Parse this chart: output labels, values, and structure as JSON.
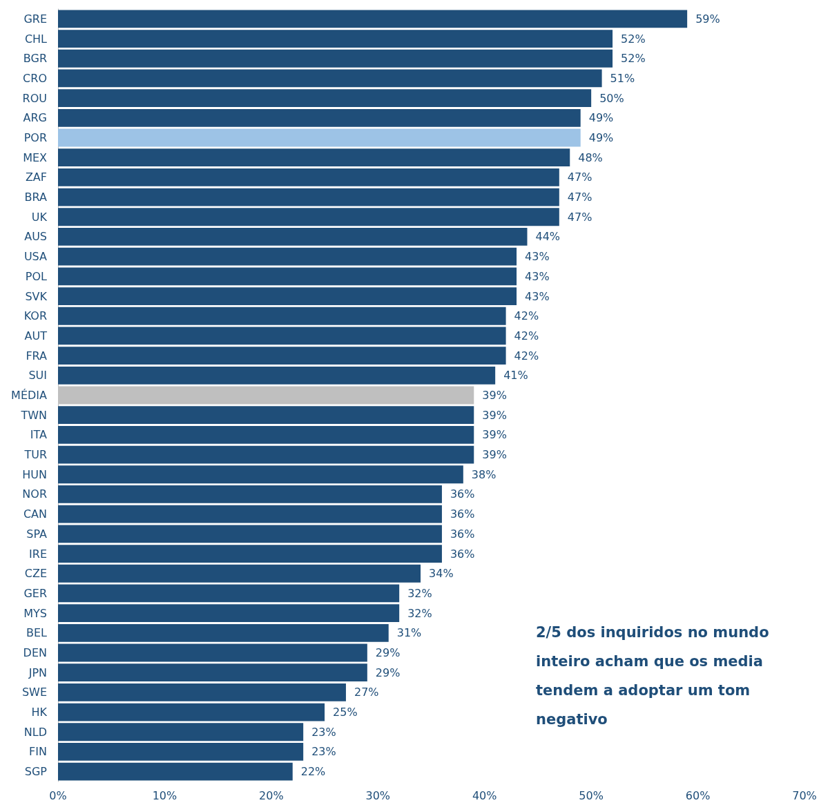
{
  "chart_data": {
    "type": "bar",
    "orientation": "horizontal",
    "categories": [
      "GRE",
      "CHL",
      "BGR",
      "CRO",
      "ROU",
      "ARG",
      "POR",
      "MEX",
      "ZAF",
      "BRA",
      "UK",
      "AUS",
      "USA",
      "POL",
      "SVK",
      "KOR",
      "AUT",
      "FRA",
      "SUI",
      "MÉDIA",
      "TWN",
      "ITA",
      "TUR",
      "HUN",
      "NOR",
      "CAN",
      "SPA",
      "IRE",
      "CZE",
      "GER",
      "MYS",
      "BEL",
      "DEN",
      "JPN",
      "SWE",
      "HK",
      "NLD",
      "FIN",
      "SGP"
    ],
    "values": [
      59,
      52,
      52,
      51,
      50,
      49,
      49,
      48,
      47,
      47,
      47,
      44,
      43,
      43,
      43,
      42,
      42,
      42,
      41,
      39,
      39,
      39,
      39,
      38,
      36,
      36,
      36,
      36,
      34,
      32,
      32,
      31,
      29,
      29,
      27,
      25,
      23,
      23,
      22
    ],
    "value_labels": [
      "59%",
      "52%",
      "52%",
      "51%",
      "50%",
      "49%",
      "49%",
      "48%",
      "47%",
      "47%",
      "47%",
      "44%",
      "43%",
      "43%",
      "43%",
      "42%",
      "42%",
      "42%",
      "41%",
      "39%",
      "39%",
      "39%",
      "39%",
      "38%",
      "36%",
      "36%",
      "36%",
      "36%",
      "34%",
      "32%",
      "32%",
      "31%",
      "29%",
      "29%",
      "27%",
      "25%",
      "23%",
      "23%",
      "22%"
    ],
    "colors": [
      "#1f4e79",
      "#1f4e79",
      "#1f4e79",
      "#1f4e79",
      "#1f4e79",
      "#1f4e79",
      "#9dc3e6",
      "#1f4e79",
      "#1f4e79",
      "#1f4e79",
      "#1f4e79",
      "#1f4e79",
      "#1f4e79",
      "#1f4e79",
      "#1f4e79",
      "#1f4e79",
      "#1f4e79",
      "#1f4e79",
      "#1f4e79",
      "#bfbfbf",
      "#1f4e79",
      "#1f4e79",
      "#1f4e79",
      "#1f4e79",
      "#1f4e79",
      "#1f4e79",
      "#1f4e79",
      "#1f4e79",
      "#1f4e79",
      "#1f4e79",
      "#1f4e79",
      "#1f4e79",
      "#1f4e79",
      "#1f4e79",
      "#1f4e79",
      "#1f4e79",
      "#1f4e79",
      "#1f4e79",
      "#1f4e79"
    ],
    "xlim": [
      0,
      70
    ],
    "xticks": [
      {
        "value": 0,
        "label": "0%"
      },
      {
        "value": 10,
        "label": "10%"
      },
      {
        "value": 20,
        "label": "20%"
      },
      {
        "value": 30,
        "label": "30%"
      },
      {
        "value": 40,
        "label": "40%"
      },
      {
        "value": 50,
        "label": "50%"
      },
      {
        "value": 60,
        "label": "60%"
      },
      {
        "value": 70,
        "label": "70%"
      }
    ],
    "grid": false,
    "annotations": [
      "2/5 dos inquiridos no mundo inteiro acham que os media tendem a adoptar um tom negativo"
    ]
  }
}
